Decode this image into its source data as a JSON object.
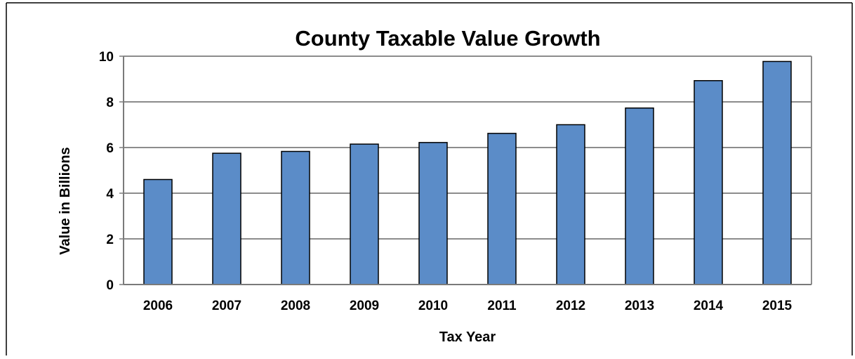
{
  "chart_data": {
    "type": "bar",
    "title": "County Taxable Value Growth",
    "xlabel": "Tax Year",
    "ylabel": "Value in Billions",
    "categories": [
      "2006",
      "2007",
      "2008",
      "2009",
      "2010",
      "2011",
      "2012",
      "2013",
      "2014",
      "2015"
    ],
    "values": [
      4.6,
      5.75,
      5.83,
      6.15,
      6.22,
      6.62,
      7.0,
      7.73,
      8.93,
      9.77
    ],
    "ylim": [
      0,
      10
    ],
    "yticks": [
      "0",
      "2",
      "4",
      "6",
      "8",
      "10"
    ],
    "grid": true,
    "legend": "none",
    "colors": {
      "bar_fill": "#5b8cc8",
      "bar_stroke": "#000000",
      "grid": "#8c8c8c",
      "axis": "#7a7a7a",
      "frame": "#000000"
    }
  }
}
